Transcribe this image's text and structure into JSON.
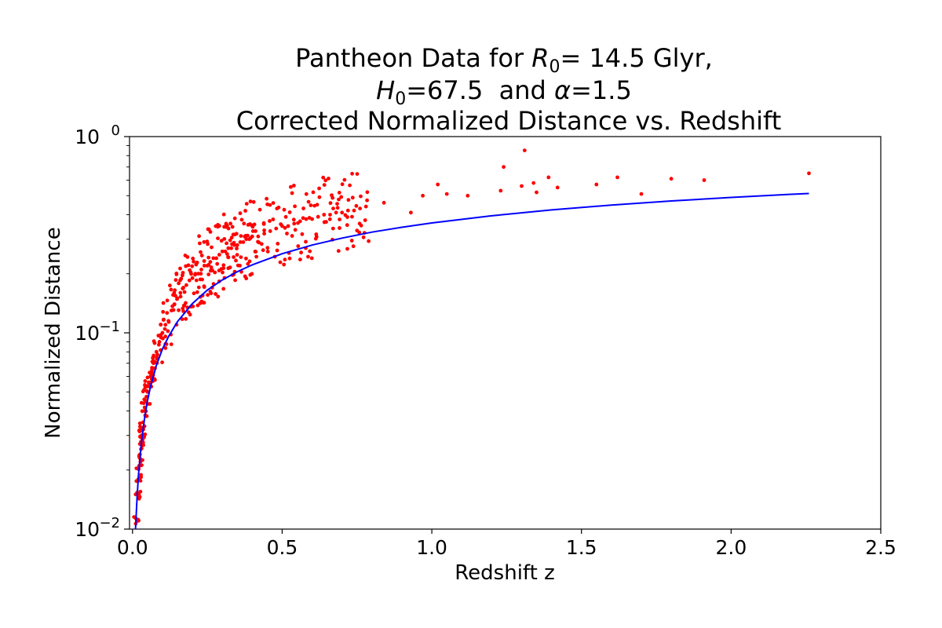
{
  "chart_data": {
    "type": "scatter",
    "title": {
      "line1_prefix": "Pantheon Data for ",
      "line1_var": "R",
      "line1_sub": "0",
      "line1_suffix": "= 14.5 Glyr,",
      "line2_var": "H",
      "line2_sub": "0",
      "line2_mid": "=67.5  and ",
      "line2_var2": "α",
      "line2_suffix": "=1.5",
      "line3": "Corrected Normalized Distance vs. Redshift"
    },
    "xlabel": "Redshift z",
    "ylabel": "Normalized Distance",
    "xlim": [
      -0.01,
      2.5
    ],
    "ylim": [
      0.01,
      1.0
    ],
    "yscale": "log",
    "grid": false,
    "x_ticks": [
      {
        "value": 0.0,
        "label": "0.0"
      },
      {
        "value": 0.5,
        "label": "0.5"
      },
      {
        "value": 1.0,
        "label": "1.0"
      },
      {
        "value": 1.5,
        "label": "1.5"
      },
      {
        "value": 2.0,
        "label": "2.0"
      },
      {
        "value": 2.5,
        "label": "2.5"
      }
    ],
    "y_ticks": [
      {
        "value": 0.01,
        "base": "10",
        "exp": "−2"
      },
      {
        "value": 0.1,
        "base": "10",
        "exp": "−1"
      },
      {
        "value": 1.0,
        "base": "10",
        "exp": "0"
      }
    ],
    "series": [
      {
        "type": "scatter",
        "color": "#ff0000",
        "x": [
          0.015,
          0.018,
          0.02,
          0.022,
          0.025,
          0.028,
          0.03,
          0.032,
          0.035,
          0.04,
          0.045,
          0.05,
          0.055,
          0.06,
          0.065,
          0.07,
          0.08,
          0.09,
          0.1,
          0.11,
          0.12,
          0.13,
          0.14,
          0.15,
          0.16,
          0.17,
          0.18,
          0.19,
          0.2,
          0.21,
          0.22,
          0.23,
          0.24,
          0.25,
          0.26,
          0.27,
          0.28,
          0.29,
          0.3,
          0.31,
          0.32,
          0.33,
          0.34,
          0.35,
          0.36,
          0.37,
          0.38,
          0.39,
          0.4,
          0.42,
          0.44,
          0.46,
          0.48,
          0.5,
          0.52,
          0.54,
          0.56,
          0.58,
          0.6,
          0.62,
          0.64,
          0.66,
          0.68,
          0.7,
          0.72,
          0.74,
          0.76,
          0.78,
          0.84,
          0.93,
          0.97,
          1.02,
          1.05,
          1.12,
          1.23,
          1.24,
          1.3,
          1.31,
          1.34,
          1.35,
          1.39,
          1.42,
          1.55,
          1.62,
          1.7,
          1.8,
          1.91,
          2.26
        ],
        "y": [
          0.011,
          0.015,
          0.018,
          0.021,
          0.024,
          0.027,
          0.03,
          0.032,
          0.035,
          0.04,
          0.045,
          0.05,
          0.055,
          0.06,
          0.065,
          0.07,
          0.08,
          0.09,
          0.1,
          0.11,
          0.115,
          0.13,
          0.14,
          0.15,
          0.16,
          0.17,
          0.175,
          0.185,
          0.19,
          0.2,
          0.2,
          0.21,
          0.22,
          0.22,
          0.23,
          0.24,
          0.24,
          0.25,
          0.26,
          0.26,
          0.27,
          0.27,
          0.28,
          0.28,
          0.29,
          0.29,
          0.3,
          0.3,
          0.31,
          0.31,
          0.32,
          0.33,
          0.34,
          0.35,
          0.35,
          0.36,
          0.37,
          0.38,
          0.38,
          0.39,
          0.4,
          0.4,
          0.41,
          0.41,
          0.42,
          0.42,
          0.43,
          0.44,
          0.46,
          0.41,
          0.5,
          0.57,
          0.51,
          0.5,
          0.53,
          0.7,
          0.56,
          0.85,
          0.58,
          0.52,
          0.62,
          0.55,
          0.57,
          0.62,
          0.51,
          0.61,
          0.6,
          0.65
        ],
        "scatter_width": [
          0.012,
          0.012,
          0.013,
          0.014,
          0.016,
          0.018,
          0.02,
          0.02,
          0.022,
          0.025,
          0.03,
          0.033,
          0.035,
          0.04,
          0.04,
          0.045,
          0.05,
          0.055,
          0.06,
          0.065,
          0.07,
          0.075,
          0.08,
          0.08,
          0.085,
          0.085,
          0.09,
          0.09,
          0.09,
          0.09,
          0.095,
          0.095,
          0.1,
          0.1,
          0.1,
          0.1,
          0.1,
          0.1,
          0.1,
          0.1,
          0.1,
          0.1,
          0.1,
          0.1,
          0.1,
          0.1,
          0.1,
          0.1,
          0.1,
          0.1,
          0.1,
          0.1,
          0.1,
          0.1,
          0.1,
          0.1,
          0.1,
          0.1,
          0.1,
          0.1,
          0.1,
          0.1,
          0.1,
          0.1,
          0.1,
          0.1,
          0.1,
          0.1,
          0,
          0,
          0,
          0,
          0,
          0,
          0,
          0,
          0,
          0,
          0,
          0,
          0,
          0,
          0,
          0,
          0,
          0,
          0,
          0
        ]
      },
      {
        "type": "line",
        "color": "#0000ff",
        "x": [
          0.01,
          0.015,
          0.02,
          0.03,
          0.04,
          0.05,
          0.06,
          0.08,
          0.1,
          0.12,
          0.15,
          0.2,
          0.25,
          0.3,
          0.35,
          0.4,
          0.5,
          0.6,
          0.7,
          0.8,
          0.9,
          1.0,
          1.2,
          1.4,
          1.6,
          1.8,
          2.0,
          2.2,
          2.26
        ],
        "y": [
          0.0095,
          0.0142,
          0.0189,
          0.0279,
          0.0366,
          0.0451,
          0.0532,
          0.0685,
          0.0826,
          0.0956,
          0.114,
          0.141,
          0.165,
          0.186,
          0.205,
          0.222,
          0.253,
          0.28,
          0.304,
          0.326,
          0.345,
          0.363,
          0.395,
          0.423,
          0.448,
          0.47,
          0.49,
          0.508,
          0.513
        ]
      }
    ]
  }
}
